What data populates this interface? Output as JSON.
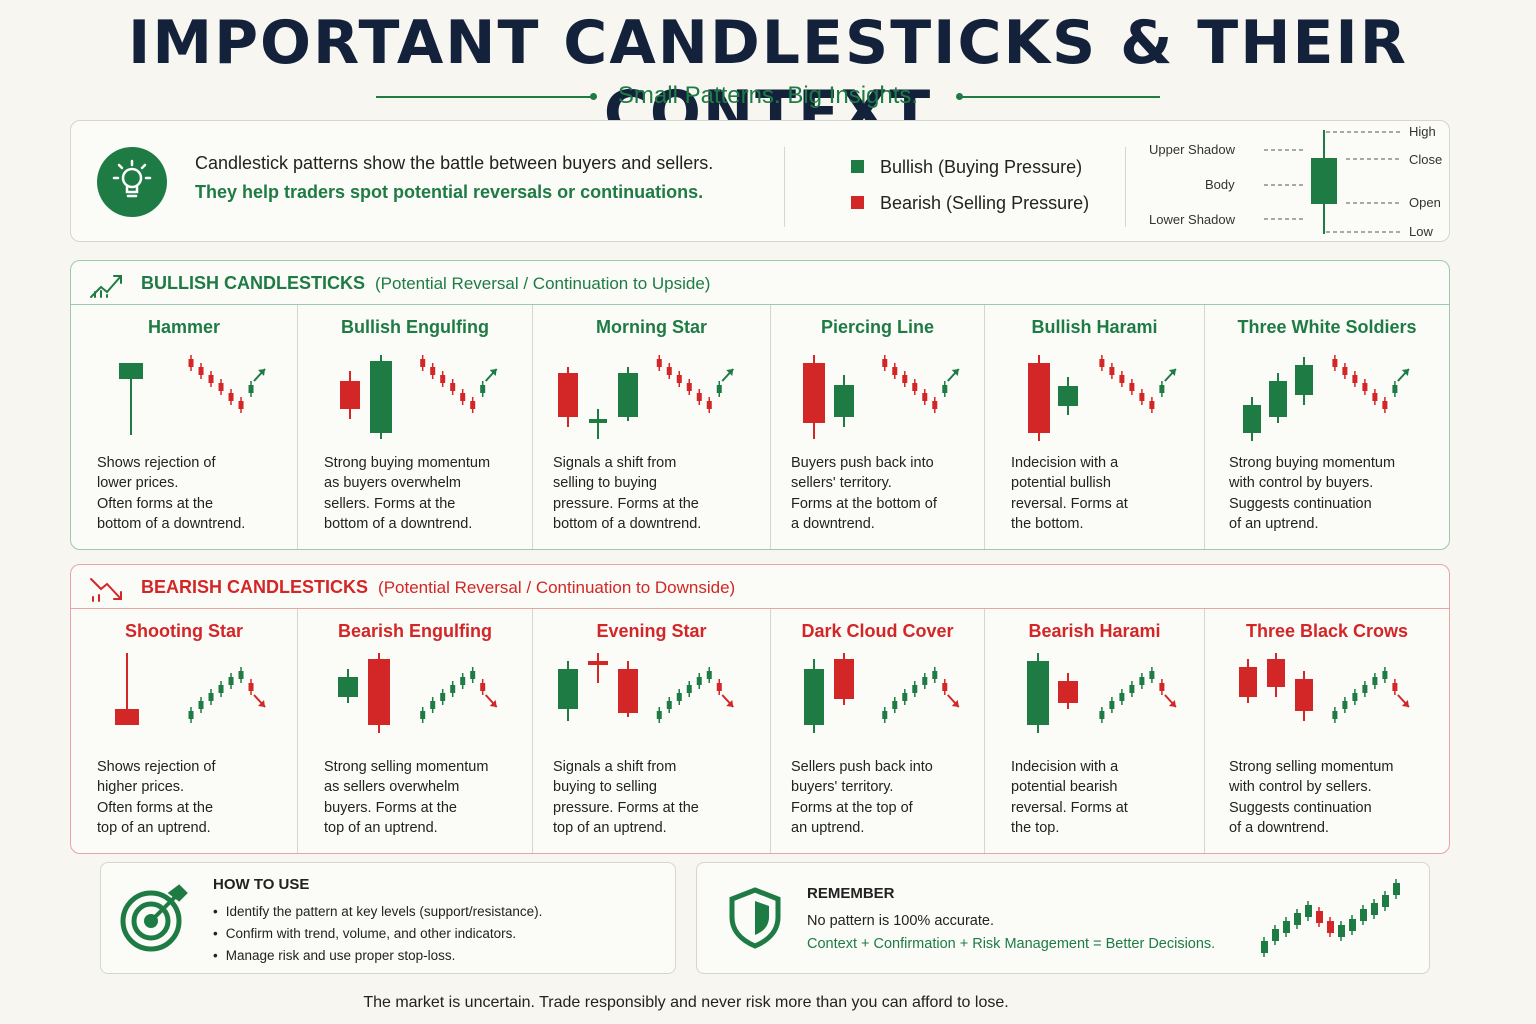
{
  "title": "IMPORTANT CANDLESTICKS & THEIR CONTEXT",
  "subtitle": "Small Patterns. Big Insights.",
  "intro": {
    "icon": "lightbulb-icon",
    "line1": "Candlestick patterns show the battle between buyers and sellers.",
    "line2": "They help traders spot potential reversals or continuations."
  },
  "legend": {
    "bullish": "Bullish (Buying Pressure)",
    "bearish": "Bearish (Selling Pressure)",
    "bullish_color": "#1e7b44",
    "bearish_color": "#d32626"
  },
  "anatomy": {
    "upper_shadow": "Upper Shadow",
    "body": "Body",
    "lower_shadow": "Lower Shadow",
    "high": "High",
    "close": "Close",
    "open": "Open",
    "low": "Low"
  },
  "bullish": {
    "title": "BULLISH CANDLESTICKS",
    "subtitle": "(Potential Reversal / Continuation to Upside)",
    "patterns": [
      {
        "name": "Hammer",
        "desc": "Shows rejection of\nlower prices.\nOften forms at the\nbottom of a downtrend."
      },
      {
        "name": "Bullish Engulfing",
        "desc": "Strong buying momentum\nas buyers overwhelm\nsellers. Forms at the\nbottom of a downtrend."
      },
      {
        "name": "Morning Star",
        "desc": "Signals a shift from\nselling to buying\npressure. Forms at the\nbottom of a downtrend."
      },
      {
        "name": "Piercing Line",
        "desc": "Buyers push back into\nsellers' territory.\nForms at the bottom of\na downtrend."
      },
      {
        "name": "Bullish Harami",
        "desc": "Indecision with a\npotential bullish\nreversal. Forms at\nthe bottom."
      },
      {
        "name": "Three White Soldiers",
        "desc": "Strong buying momentum\nwith control by buyers.\nSuggests continuation\nof an uptrend."
      }
    ]
  },
  "bearish": {
    "title": "BEARISH CANDLESTICKS",
    "subtitle": "(Potential Reversal / Continuation to Downside)",
    "patterns": [
      {
        "name": "Shooting Star",
        "desc": "Shows rejection of\nhigher prices.\nOften forms at the\ntop of an uptrend."
      },
      {
        "name": "Bearish Engulfing",
        "desc": "Strong selling momentum\nas sellers overwhelm\nbuyers. Forms at the\ntop of an uptrend."
      },
      {
        "name": "Evening Star",
        "desc": "Signals a shift from\nbuying to selling\npressure. Forms at the\ntop of an uptrend."
      },
      {
        "name": "Dark Cloud Cover",
        "desc": "Sellers push back into\nbuyers' territory.\nForms at the top of\nan uptrend."
      },
      {
        "name": "Bearish Harami",
        "desc": "Indecision with a\npotential bearish\nreversal. Forms at\nthe top."
      },
      {
        "name": "Three Black Crows",
        "desc": "Strong selling momentum\nwith control by sellers.\nSuggests continuation\nof a downtrend."
      }
    ]
  },
  "how_to_use": {
    "icon": "target-icon",
    "title": "HOW TO USE",
    "items": [
      "Identify the pattern at key levels (support/resistance).",
      "Confirm with trend, volume, and other indicators.",
      "Manage risk and use proper stop-loss."
    ]
  },
  "remember": {
    "icon": "shield-icon",
    "title": "REMEMBER",
    "line1": "No pattern is 100% accurate.",
    "line2": "Context + Confirmation + Risk Management = Better Decisions."
  },
  "footer": "The market is uncertain. Trade responsibly and never risk more than you can afford to lose."
}
